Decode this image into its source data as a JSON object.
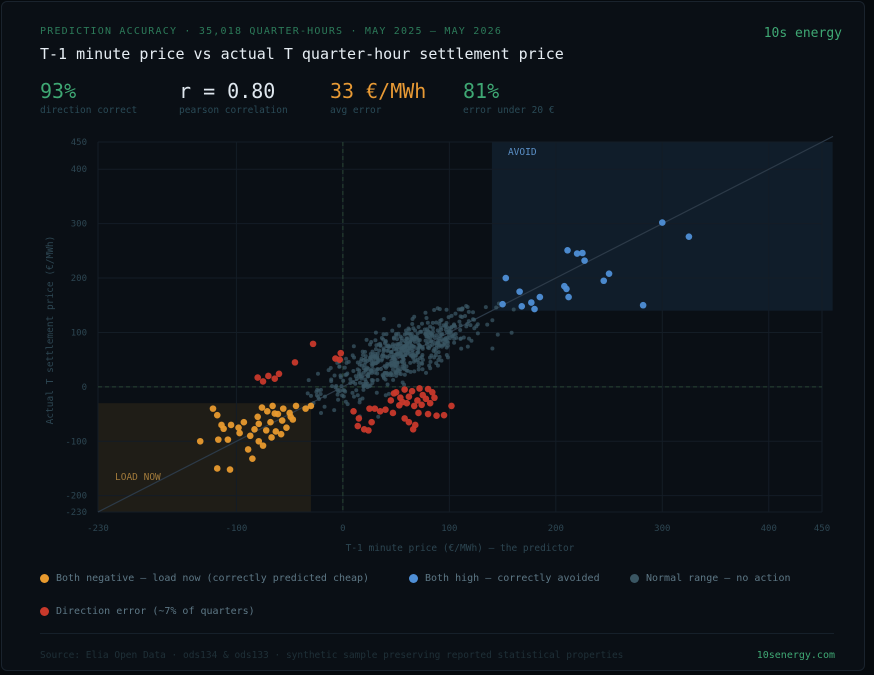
{
  "header": {
    "kicker": "PREDICTION ACCURACY · 35,018 QUARTER-HOURS · MAY 2025 – MAY 2026",
    "brand": "10s energy",
    "title": "T-1 minute price vs actual T quarter-hour settlement price"
  },
  "stats": [
    {
      "value": "93%",
      "label": "direction correct",
      "color": "#3fa874"
    },
    {
      "value": "r = 0.80",
      "label": "pearson correlation",
      "color": "#dfe7ee"
    },
    {
      "value": "33 €/MWh",
      "label": "avg error",
      "color": "#e89a35"
    },
    {
      "value": "81%",
      "label": "error under 20 €",
      "color": "#3fa874"
    }
  ],
  "legend": [
    {
      "label": "Both negative — load now (correctly predicted cheap)",
      "color": "#e89a2e"
    },
    {
      "label": "Both high — correctly avoided",
      "color": "#4f8fd6"
    },
    {
      "label": "Normal range — no action",
      "color": "#3a5663"
    },
    {
      "label": "Direction error (~7% of quarters)",
      "color": "#c8392b"
    }
  ],
  "footer": {
    "source": "Source: Elia Open Data · ods134 & ods133 · synthetic sample preserving reported statistical properties",
    "site": "10senergy.com"
  },
  "chart_data": {
    "type": "scatter",
    "xlabel": "T-1 minute price (€/MWh)  —  the predictor",
    "ylabel": "Actual T settlement price (€/MWh)",
    "xlim": [
      -230,
      450
    ],
    "ylim": [
      -230,
      450
    ],
    "x_ticks": [
      -230,
      -100,
      0,
      100,
      200,
      300,
      400,
      450
    ],
    "y_ticks": [
      -230,
      -200,
      -100,
      0,
      100,
      200,
      300,
      400,
      450
    ],
    "grid": true,
    "diagonal": "y = x",
    "zones": [
      {
        "label": "AVOID",
        "x": [
          140,
          460
        ],
        "y": [
          140,
          460
        ],
        "color": "#4f8fd6"
      },
      {
        "label": "LOAD NOW",
        "x": [
          -230,
          -30
        ],
        "y": [
          -230,
          -30
        ],
        "color": "#e89a2e"
      }
    ],
    "series": [
      {
        "name": "Both negative — load now (correctly predicted cheap)",
        "color": "#e89a2e",
        "points": [
          [
            -56,
            -40
          ],
          [
            -50,
            -48
          ],
          [
            -44,
            -35
          ],
          [
            -47,
            -60
          ],
          [
            -35,
            -40
          ],
          [
            -61,
            -50
          ],
          [
            -66,
            -35
          ],
          [
            -71,
            -45
          ],
          [
            -76,
            -38
          ],
          [
            -80,
            -55
          ],
          [
            -68,
            -65
          ],
          [
            -57,
            -62
          ],
          [
            -53,
            -75
          ],
          [
            -63,
            -82
          ],
          [
            -67,
            -93
          ],
          [
            -72,
            -80
          ],
          [
            -83,
            -78
          ],
          [
            -87,
            -90
          ],
          [
            -79,
            -100
          ],
          [
            -75,
            -108
          ],
          [
            -89,
            -115
          ],
          [
            -85,
            -132
          ],
          [
            -98,
            -75
          ],
          [
            -105,
            -70
          ],
          [
            -114,
            -70
          ],
          [
            -118,
            -52
          ],
          [
            -122,
            -40
          ],
          [
            -112,
            -77
          ],
          [
            -108,
            -97
          ],
          [
            -117,
            -97
          ],
          [
            -134,
            -100
          ],
          [
            -106,
            -152
          ],
          [
            -118,
            -150
          ],
          [
            -93,
            -65
          ],
          [
            -58,
            -87
          ],
          [
            -30,
            -35
          ],
          [
            -97,
            -85
          ],
          [
            -64,
            -49
          ],
          [
            -79,
            -68
          ],
          [
            -49,
            -55
          ]
        ]
      },
      {
        "name": "Both high — correctly avoided",
        "color": "#4f8fd6",
        "points": [
          [
            300,
            302
          ],
          [
            325,
            276
          ],
          [
            211,
            251
          ],
          [
            220,
            245
          ],
          [
            225,
            246
          ],
          [
            227,
            232
          ],
          [
            250,
            208
          ],
          [
            245,
            195
          ],
          [
            153,
            200
          ],
          [
            166,
            175
          ],
          [
            185,
            165
          ],
          [
            177,
            155
          ],
          [
            150,
            152
          ],
          [
            168,
            148
          ],
          [
            180,
            143
          ],
          [
            208,
            185
          ],
          [
            210,
            180
          ],
          [
            212,
            165
          ],
          [
            282,
            150
          ]
        ]
      },
      {
        "name": "Direction error (~7% of quarters)",
        "color": "#c8392b",
        "points": [
          [
            -28,
            79
          ],
          [
            -7,
            52
          ],
          [
            -2,
            62
          ],
          [
            -3,
            50
          ],
          [
            -45,
            45
          ],
          [
            -60,
            24
          ],
          [
            -70,
            20
          ],
          [
            -80,
            17
          ],
          [
            -75,
            10
          ],
          [
            -64,
            15
          ],
          [
            10,
            -45
          ],
          [
            15,
            -58
          ],
          [
            14,
            -72
          ],
          [
            20,
            -78
          ],
          [
            24,
            -80
          ],
          [
            27,
            -65
          ],
          [
            25,
            -40
          ],
          [
            35,
            -45
          ],
          [
            40,
            -42
          ],
          [
            47,
            -48
          ],
          [
            58,
            -58
          ],
          [
            62,
            -65
          ],
          [
            66,
            -78
          ],
          [
            68,
            -70
          ],
          [
            71,
            -48
          ],
          [
            80,
            -50
          ],
          [
            82,
            -30
          ],
          [
            88,
            -53
          ],
          [
            102,
            -35
          ],
          [
            95,
            -52
          ],
          [
            50,
            -10
          ],
          [
            54,
            -20
          ],
          [
            58,
            -5
          ],
          [
            62,
            -18
          ],
          [
            65,
            -8
          ],
          [
            70,
            -25
          ],
          [
            72,
            -3
          ],
          [
            75,
            -15
          ],
          [
            78,
            -22
          ],
          [
            80,
            -4
          ],
          [
            84,
            -10
          ],
          [
            60,
            -30
          ],
          [
            53,
            -34
          ],
          [
            67,
            -35
          ],
          [
            45,
            -25
          ],
          [
            48,
            -12
          ],
          [
            56,
            -28
          ],
          [
            74,
            -33
          ],
          [
            86,
            -20
          ],
          [
            30,
            -40
          ]
        ]
      },
      {
        "name": "Normal range — no action",
        "color": "#3a5663",
        "generated": true,
        "count": 600,
        "center": [
          55,
          60
        ],
        "spread": [
          38,
          40
        ],
        "correlation": 0.8
      }
    ]
  }
}
